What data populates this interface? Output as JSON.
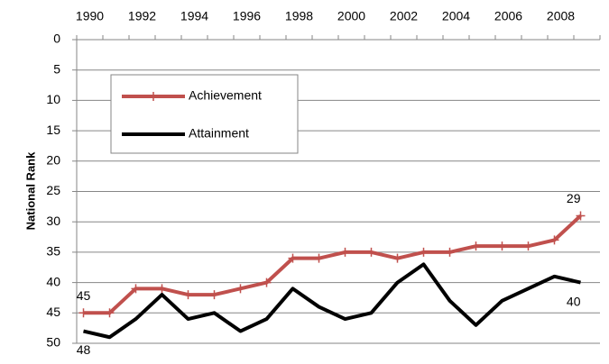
{
  "chart_data": {
    "type": "line",
    "y_label": "National Rank",
    "categories": [
      "1990",
      null,
      "1992",
      null,
      "1994",
      null,
      "1996",
      null,
      "1998",
      null,
      "2000",
      null,
      "2002",
      null,
      "2004",
      null,
      "2006",
      null,
      "2008",
      null
    ],
    "series": [
      {
        "name": "Achievement",
        "color": "#c0504d",
        "marker": "plus",
        "values": [
          45,
          45,
          41,
          41,
          42,
          42,
          41,
          40,
          36,
          36,
          35,
          35,
          36,
          35,
          35,
          34,
          34,
          34,
          33,
          29
        ]
      },
      {
        "name": "Attainment",
        "color": "#000000",
        "values": [
          48,
          49,
          46,
          42,
          46,
          45,
          48,
          46,
          41,
          44,
          46,
          45,
          40,
          37,
          43,
          47,
          43,
          41,
          39,
          40
        ]
      }
    ],
    "ylim": [
      0,
      50
    ],
    "yticks": [
      0,
      5,
      10,
      15,
      20,
      25,
      30,
      35,
      40,
      45,
      50
    ],
    "y_inverted": true,
    "x_axis_position": "top",
    "grid": true,
    "label_ends": true,
    "legend": "upper left"
  }
}
